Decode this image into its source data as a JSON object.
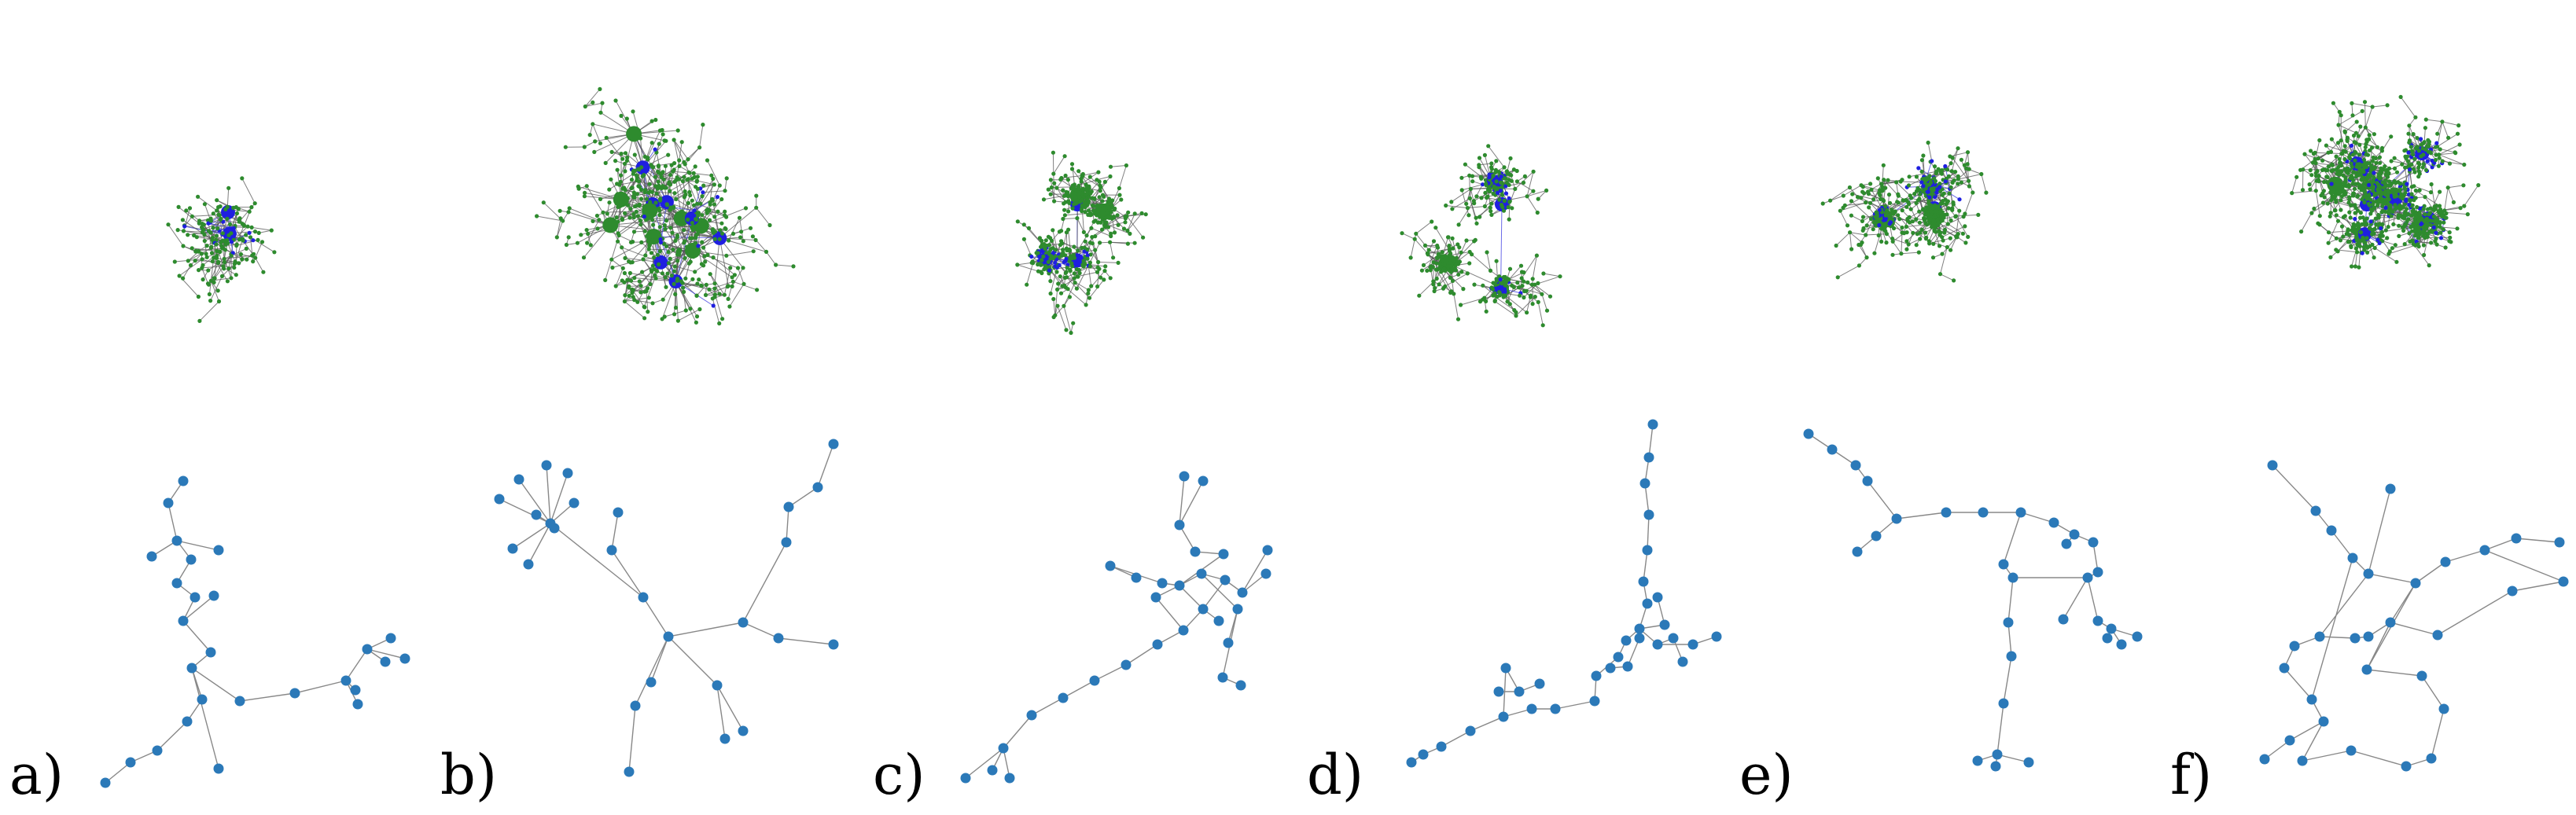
{
  "figure": {
    "panels": [
      {
        "label": "a)"
      },
      {
        "label": "b)"
      },
      {
        "label": "c)"
      },
      {
        "label": "d)"
      },
      {
        "label": "e)"
      },
      {
        "label": "f)"
      }
    ],
    "colors": {
      "tree_node": "#2e8b2e",
      "highlight_node": "#1f1fe0",
      "tree_edge": "#555555",
      "highlight_edge": "#3a3ae0",
      "small_node": "#2b79b8",
      "small_edge": "#888888"
    }
  }
}
